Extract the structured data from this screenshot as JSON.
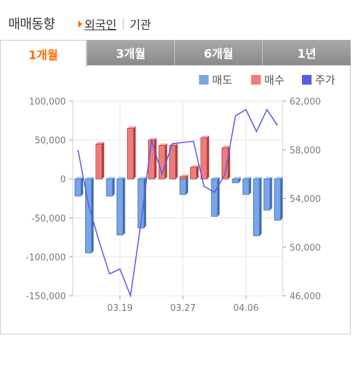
{
  "header": {
    "title": "매매동향",
    "sub_active": "외국인",
    "sub_other": "기관"
  },
  "tabs": [
    {
      "label": "1개월",
      "active": true
    },
    {
      "label": "3개월",
      "active": false
    },
    {
      "label": "6개월",
      "active": false
    },
    {
      "label": "1년",
      "active": false
    }
  ],
  "colors": {
    "sell": "#7aa5e6",
    "buy": "#f07b7b",
    "price": "#5a5ae8",
    "accent": "#ff6a00"
  },
  "chart_data": {
    "type": "bar",
    "legend": [
      "매도",
      "매수",
      "주가"
    ],
    "legend_position": "top-right",
    "grid": true,
    "y_left": {
      "ylim": [
        -150000,
        100000
      ],
      "ticks": [
        100000,
        50000,
        0,
        -50000,
        -100000,
        -150000
      ],
      "tick_labels": [
        "100,000",
        "50,000",
        "0",
        "-50,000",
        "-100,000",
        "-150,000"
      ]
    },
    "y_right": {
      "ylim": [
        46000,
        62000
      ],
      "ticks": [
        62000,
        58000,
        54000,
        50000,
        46000
      ],
      "tick_labels": [
        "62,000",
        "58,000",
        "54,000",
        "50,000",
        "46,000"
      ]
    },
    "x_tick_labels": [
      {
        "label": "03.19",
        "index": 4
      },
      {
        "label": "03.27",
        "index": 10
      },
      {
        "label": "04.06",
        "index": 16
      }
    ],
    "series": [
      {
        "name": "매도",
        "axis": "left",
        "values": [
          -22000,
          -95000,
          0,
          -22000,
          -72000,
          0,
          -63000,
          0,
          0,
          0,
          -20000,
          0,
          0,
          -48000,
          0,
          -5000,
          -20000,
          -73000,
          -40000,
          -53000
        ]
      },
      {
        "name": "매수",
        "axis": "left",
        "values": [
          0,
          0,
          45000,
          0,
          0,
          65000,
          0,
          50000,
          43000,
          43000,
          3000,
          15000,
          53000,
          0,
          40000,
          0,
          0,
          0,
          0,
          0
        ]
      },
      {
        "name": "주가",
        "axis": "right",
        "values": [
          58000,
          53500,
          50500,
          47800,
          48200,
          46000,
          52000,
          58800,
          56000,
          58500,
          58600,
          58700,
          55000,
          54500,
          56000,
          60800,
          61300,
          59500,
          61300,
          60000
        ]
      }
    ]
  }
}
